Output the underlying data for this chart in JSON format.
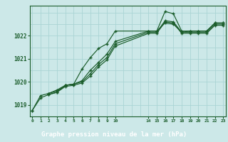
{
  "bg_color": "#cce8e8",
  "grid_color": "#aad4d4",
  "line_color": "#1a5c2a",
  "footer_bg": "#1a5c2a",
  "footer_text": "Graphe pression niveau de la mer (hPa)",
  "ylabel_values": [
    1019,
    1020,
    1021,
    1022
  ],
  "xlim": [
    -0.3,
    23.3
  ],
  "ylim": [
    1018.5,
    1023.3
  ],
  "xticks": [
    0,
    1,
    2,
    3,
    4,
    5,
    6,
    7,
    8,
    9,
    10,
    14,
    15,
    16,
    17,
    18,
    19,
    20,
    21,
    22,
    23
  ],
  "series1": {
    "x": [
      0,
      1,
      2,
      3,
      4,
      5,
      6,
      7,
      8,
      9,
      10,
      14,
      15,
      16,
      17,
      18,
      19,
      20,
      21,
      22,
      23
    ],
    "y": [
      1018.75,
      1019.4,
      1019.5,
      1019.65,
      1019.85,
      1019.9,
      1020.55,
      1021.05,
      1021.45,
      1021.65,
      1022.2,
      1022.2,
      1022.2,
      1022.55,
      1022.5,
      1022.15,
      1022.2,
      1022.2,
      1022.2,
      1022.55,
      1022.55
    ]
  },
  "series2": {
    "x": [
      0,
      1,
      2,
      3,
      4,
      5,
      6,
      7,
      8,
      9,
      10,
      14,
      15,
      16,
      17,
      18,
      19,
      20,
      21,
      22,
      23
    ],
    "y": [
      1018.75,
      1019.3,
      1019.45,
      1019.55,
      1019.85,
      1019.9,
      1020.05,
      1020.5,
      1020.85,
      1021.2,
      1021.75,
      1022.2,
      1022.2,
      1023.05,
      1022.95,
      1022.2,
      1022.2,
      1022.2,
      1022.2,
      1022.55,
      1022.55
    ]
  },
  "series3": {
    "x": [
      2,
      3,
      4,
      5,
      6,
      7,
      8,
      9,
      10,
      14,
      15,
      16,
      17,
      18,
      19,
      20,
      21,
      22,
      23
    ],
    "y": [
      1019.5,
      1019.6,
      1019.85,
      1019.9,
      1020.0,
      1020.35,
      1020.75,
      1021.05,
      1021.65,
      1022.15,
      1022.15,
      1022.65,
      1022.6,
      1022.15,
      1022.15,
      1022.15,
      1022.15,
      1022.5,
      1022.5
    ]
  },
  "series4": {
    "x": [
      2,
      3,
      4,
      5,
      6,
      7,
      8,
      9,
      10,
      14,
      15,
      16,
      17,
      18,
      19,
      20,
      21,
      22,
      23
    ],
    "y": [
      1019.45,
      1019.55,
      1019.8,
      1019.85,
      1019.95,
      1020.25,
      1020.65,
      1020.95,
      1021.55,
      1022.1,
      1022.1,
      1022.6,
      1022.55,
      1022.1,
      1022.1,
      1022.1,
      1022.1,
      1022.45,
      1022.45
    ]
  }
}
